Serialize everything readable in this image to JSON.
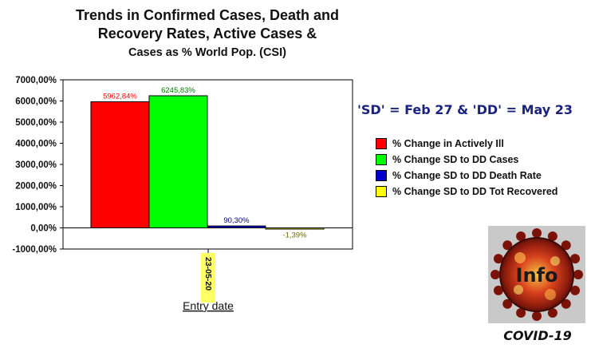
{
  "title": {
    "line1": "Trends in Confirmed Cases, Death and",
    "line2": "Recovery Rates, Active Cases &",
    "line3": "Cases as % World Pop. (CSI)"
  },
  "note": "'SD' = Feb 27 & 'DD' = May 23",
  "logo": {
    "text": "Info",
    "caption": "COVID-19"
  },
  "chart_data": {
    "type": "bar",
    "categories": [
      "23-05-20"
    ],
    "xlabel": "Entry date",
    "ylabel": "",
    "ylim": [
      -1000,
      7000
    ],
    "yticks": [
      -1000,
      0,
      1000,
      2000,
      3000,
      4000,
      5000,
      6000,
      7000
    ],
    "ytick_labels": [
      "-1000,00%",
      "0,00%",
      "1000,00%",
      "2000,00%",
      "3000,00%",
      "4000,00%",
      "5000,00%",
      "6000,00%",
      "7000,00%"
    ],
    "grid": false,
    "legend_position": "right",
    "series": [
      {
        "name": "% Change in Actively Ill",
        "values": [
          5962.84
        ],
        "label": "5962,84%",
        "color": "#ff0000",
        "label_color": "#ff0000"
      },
      {
        "name": "% Change SD to DD Cases",
        "values": [
          6245.83
        ],
        "label": "6245,83%",
        "color": "#00ff00",
        "label_color": "#008000"
      },
      {
        "name": "% Change SD to DD Death Rate",
        "values": [
          90.3
        ],
        "label": "90,30%",
        "color": "#0000cc",
        "label_color": "#000080"
      },
      {
        "name": "% Change SD to DD Tot Recovered",
        "values": [
          -1.39
        ],
        "label": "-1,39%",
        "color": "#ffff00",
        "label_color": "#6b6b00"
      }
    ]
  }
}
